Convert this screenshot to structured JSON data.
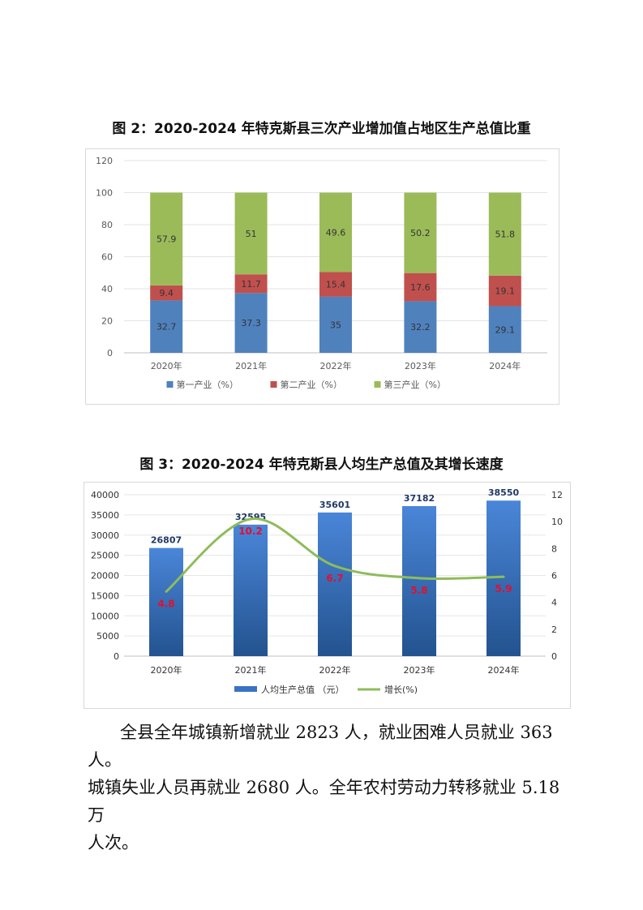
{
  "figure2": {
    "title": "图 2：2020-2024 年特克斯县三次产业增加值占地区生产总值比重",
    "chart_data": {
      "type": "bar",
      "stacked": true,
      "categories": [
        "2020年",
        "2021年",
        "2022年",
        "2023年",
        "2024年"
      ],
      "series": [
        {
          "name": "第一产业（%）",
          "color": "#4f81bd",
          "values": [
            32.7,
            37.3,
            35,
            32.2,
            29.1
          ]
        },
        {
          "name": "第二产业（%）",
          "color": "#c0504d",
          "values": [
            9.4,
            11.7,
            15.4,
            17.6,
            19.1
          ]
        },
        {
          "name": "第三产业（%）",
          "color": "#9bbb59",
          "values": [
            57.9,
            51,
            49.6,
            50.2,
            51.8
          ]
        }
      ],
      "ylim": [
        0,
        120
      ],
      "yticks": [
        0,
        20,
        40,
        60,
        80,
        100,
        120
      ],
      "grid": true,
      "legend": "bottom"
    }
  },
  "figure3": {
    "title": "图 3：2020-2024 年特克斯县人均生产总值及其增长速度",
    "chart_data": {
      "type": "bar+line",
      "categories": [
        "2020年",
        "2021年",
        "2022年",
        "2023年",
        "2024年"
      ],
      "series": [
        {
          "name": "人均生产总值 （元）",
          "type": "bar",
          "axis": "left",
          "color": "#3a72c4",
          "values": [
            26807,
            32595,
            35601,
            37182,
            38550
          ]
        },
        {
          "name": "增长(%)",
          "type": "line",
          "axis": "right",
          "color": "#8fbc5a",
          "values": [
            4.8,
            10.2,
            6.7,
            5.8,
            5.9
          ]
        }
      ],
      "ylim_left": [
        0,
        40000
      ],
      "yticks_left": [
        0,
        5000,
        10000,
        15000,
        20000,
        25000,
        30000,
        35000,
        40000
      ],
      "ylim_right": [
        0,
        12
      ],
      "yticks_right": [
        0,
        2,
        4,
        6,
        8,
        10,
        12
      ],
      "grid": true,
      "legend": "bottom",
      "line_label_color": "#e01030"
    }
  },
  "paragraph": {
    "line1": "全县全年城镇新增就业 2823 人，就业困难人员就业 363 人。",
    "line2": "城镇失业人员再就业 2680 人。全年农村劳动力转移就业 5.18 万",
    "line3": "人次。"
  }
}
